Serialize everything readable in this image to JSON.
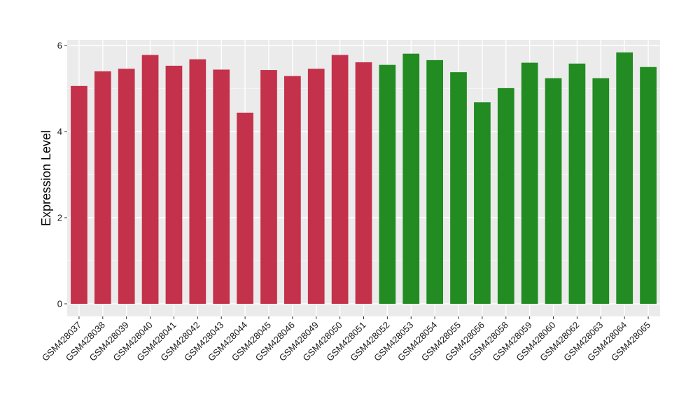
{
  "chart_data": {
    "type": "bar",
    "title": "",
    "xlabel": "",
    "ylabel": "Expression Level",
    "ylim": [
      0,
      6
    ],
    "yticks": [
      0,
      2,
      4,
      6
    ],
    "grid": true,
    "panel_background": "#EBEBEB",
    "categories": [
      "GSM428037",
      "GSM428038",
      "GSM428039",
      "GSM428040",
      "GSM428041",
      "GSM428042",
      "GSM428043",
      "GSM428044",
      "GSM428045",
      "GSM428046",
      "GSM428049",
      "GSM428050",
      "GSM428051",
      "GSM428052",
      "GSM428053",
      "GSM428054",
      "GSM428055",
      "GSM428056",
      "GSM428058",
      "GSM428059",
      "GSM428060",
      "GSM428062",
      "GSM428063",
      "GSM428064",
      "GSM428065"
    ],
    "values": [
      5.06,
      5.4,
      5.46,
      5.78,
      5.53,
      5.68,
      5.44,
      4.44,
      5.43,
      5.29,
      5.46,
      5.78,
      5.61,
      5.55,
      5.81,
      5.66,
      5.38,
      4.68,
      5.01,
      5.6,
      5.24,
      5.58,
      5.24,
      5.84,
      5.5
    ],
    "groups": [
      "a",
      "a",
      "a",
      "a",
      "a",
      "a",
      "a",
      "a",
      "a",
      "a",
      "a",
      "a",
      "a",
      "b",
      "b",
      "b",
      "b",
      "b",
      "b",
      "b",
      "b",
      "b",
      "b",
      "b",
      "b"
    ],
    "group_colors": {
      "a": "#C4314B",
      "b": "#228B22"
    }
  }
}
